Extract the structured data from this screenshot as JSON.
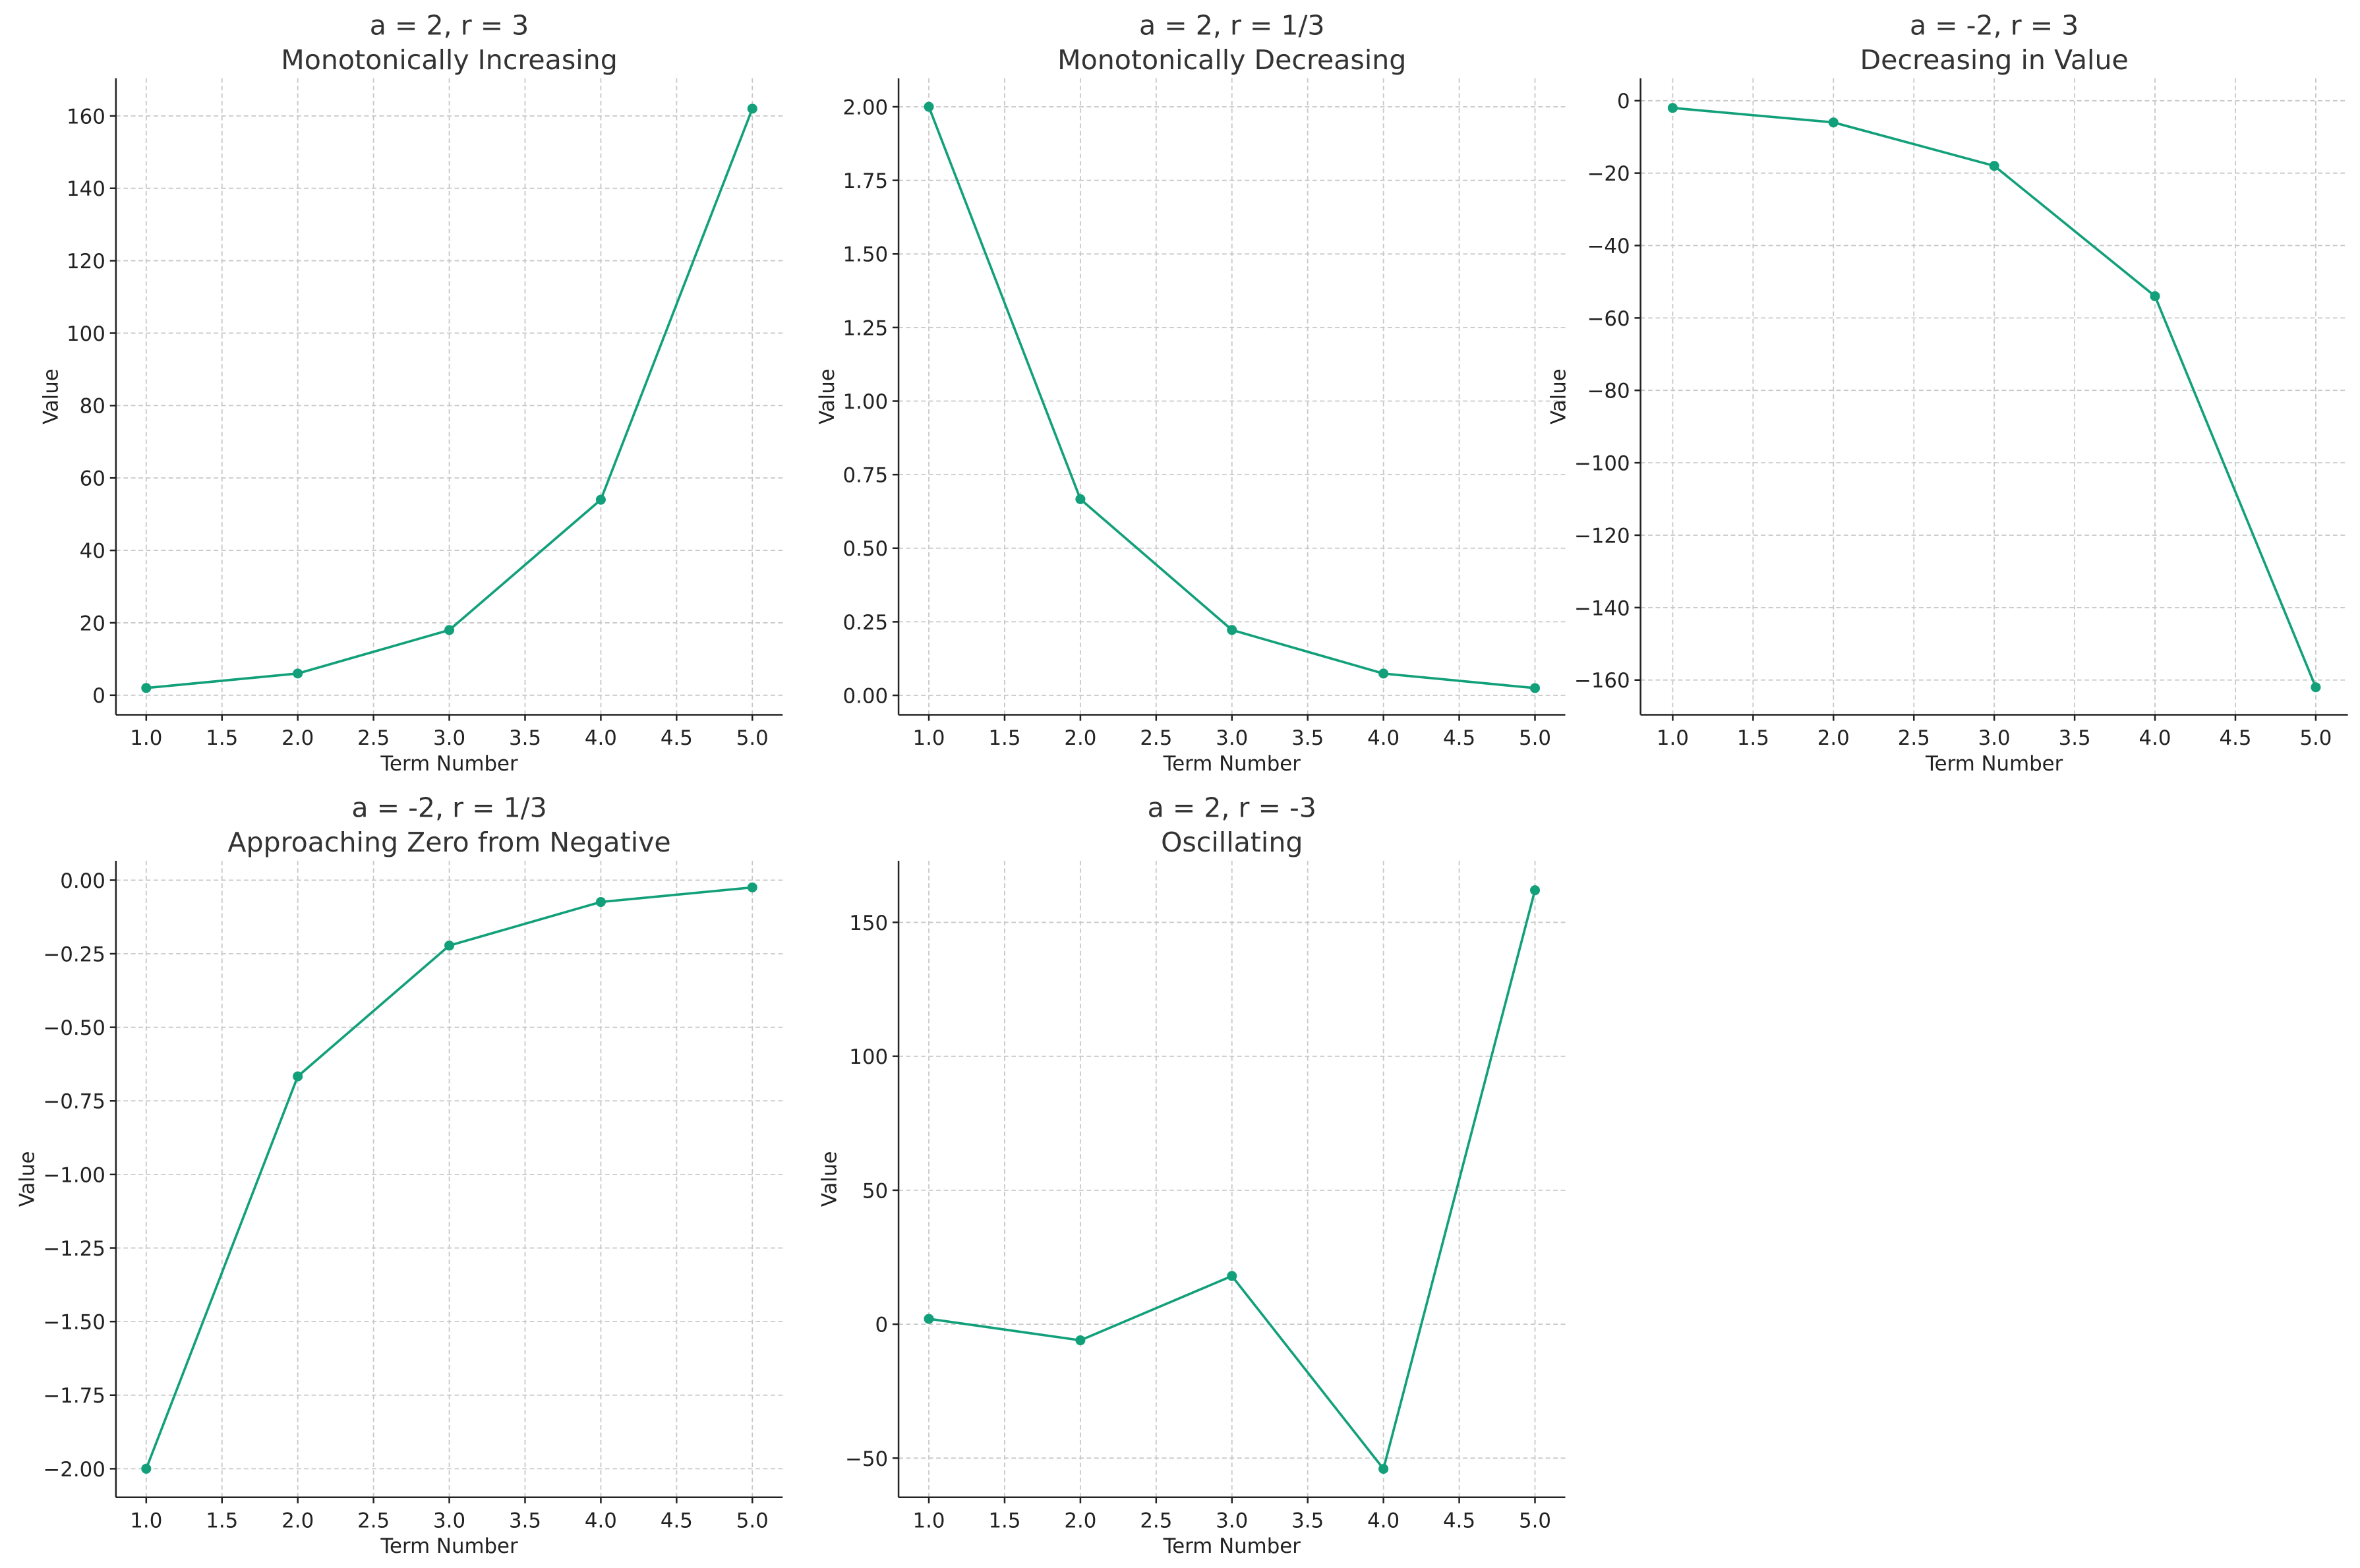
{
  "chart_data": [
    {
      "type": "line",
      "title": "a = 2, r = 3",
      "subtitle": "Monotonically Increasing",
      "xlabel": "Term Number",
      "ylabel": "Value",
      "x": [
        1,
        2,
        3,
        4,
        5
      ],
      "y": [
        2,
        6,
        18,
        54,
        162
      ],
      "xlim": [
        0.8,
        5.2
      ],
      "ylim": [
        -5.4,
        170.4
      ],
      "xticks": [
        "1.0",
        "1.5",
        "2.0",
        "2.5",
        "3.0",
        "3.5",
        "4.0",
        "4.5",
        "5.0"
      ],
      "yticks": [
        "0",
        "20",
        "40",
        "60",
        "80",
        "100",
        "120",
        "140",
        "160"
      ],
      "grid": true
    },
    {
      "type": "line",
      "title": "a = 2, r = 1/3",
      "subtitle": "Monotonically Decreasing",
      "xlabel": "Term Number",
      "ylabel": "Value",
      "x": [
        1,
        2,
        3,
        4,
        5
      ],
      "y": [
        2,
        0.6667,
        0.2222,
        0.0741,
        0.0247
      ],
      "xlim": [
        0.8,
        5.2
      ],
      "ylim": [
        -0.066,
        2.097
      ],
      "xticks": [
        "1.0",
        "1.5",
        "2.0",
        "2.5",
        "3.0",
        "3.5",
        "4.0",
        "4.5",
        "5.0"
      ],
      "yticks": [
        "0.00",
        "0.25",
        "0.50",
        "0.75",
        "1.00",
        "1.25",
        "1.50",
        "1.75",
        "2.00"
      ],
      "grid": true
    },
    {
      "type": "line",
      "title": "a = -2, r = 3",
      "subtitle": "Decreasing in Value",
      "xlabel": "Term Number",
      "ylabel": "Value",
      "x": [
        1,
        2,
        3,
        4,
        5
      ],
      "y": [
        -2,
        -6,
        -18,
        -54,
        -162
      ],
      "xlim": [
        0.8,
        5.2
      ],
      "ylim": [
        -169.6,
        6.2
      ],
      "xticks": [
        "1.0",
        "1.5",
        "2.0",
        "2.5",
        "3.0",
        "3.5",
        "4.0",
        "4.5",
        "5.0"
      ],
      "yticks": [
        "0",
        "−20",
        "−40",
        "−60",
        "−80",
        "−100",
        "−120",
        "−140",
        "−160"
      ],
      "grid": true
    },
    {
      "type": "line",
      "title": "a = -2, r = 1/3",
      "subtitle": "Approaching Zero from Negative",
      "xlabel": "Term Number",
      "ylabel": "Value",
      "x": [
        1,
        2,
        3,
        4,
        5
      ],
      "y": [
        -2,
        -0.6667,
        -0.2222,
        -0.0741,
        -0.0247
      ],
      "xlim": [
        0.8,
        5.2
      ],
      "ylim": [
        -2.097,
        0.066
      ],
      "xticks": [
        "1.0",
        "1.5",
        "2.0",
        "2.5",
        "3.0",
        "3.5",
        "4.0",
        "4.5",
        "5.0"
      ],
      "yticks": [
        "0.00",
        "−0.25",
        "−0.50",
        "−0.75",
        "−1.00",
        "−1.25",
        "−1.50",
        "−1.75",
        "−2.00"
      ],
      "grid": true
    },
    {
      "type": "line",
      "title": "a = 2, r = -3",
      "subtitle": "Oscillating",
      "xlabel": "Term Number",
      "ylabel": "Value",
      "x": [
        1,
        2,
        3,
        4,
        5
      ],
      "y": [
        2,
        -6,
        18,
        -54,
        162
      ],
      "xlim": [
        0.8,
        5.2
      ],
      "ylim": [
        -64.6,
        173
      ],
      "xticks": [
        "1.0",
        "1.5",
        "2.0",
        "2.5",
        "3.0",
        "3.5",
        "4.0",
        "4.5",
        "5.0"
      ],
      "yticks": [
        "−50",
        "0",
        "50",
        "100",
        "150"
      ],
      "grid": true
    }
  ],
  "colors": {
    "line": "#12a07a",
    "axis": "#222222",
    "grid": "#c8c8c8"
  }
}
